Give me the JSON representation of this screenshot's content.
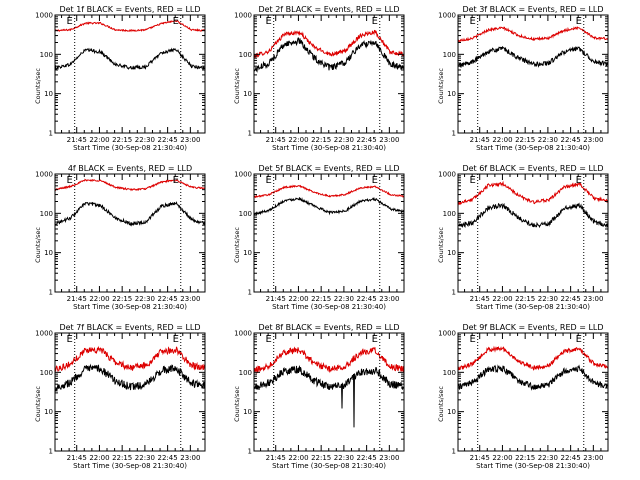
{
  "figure": {
    "x_axis_label": "Start Time (30-Sep-08 21:30:40)",
    "y_axis_label": "Counts/sec",
    "x_tick_labels": [
      "21:45",
      "22:00",
      "22:15",
      "22:30",
      "22:45",
      "23:00"
    ],
    "y_tick_labels": [
      "1",
      "10",
      "100",
      "1000"
    ],
    "event_marker_labels": [
      "E",
      "E"
    ],
    "series_colors": {
      "events": "#000000",
      "lld": "#dd0000"
    }
  },
  "chart_data": [
    {
      "type": "line",
      "title": "Det 1f BLACK = Events, RED = LLD",
      "x_unit": "minutes after 21:30:40",
      "xlim": [
        0,
        99
      ],
      "ylim": [
        1,
        1000
      ],
      "y_scale": "log",
      "grid": false,
      "event_markers_x": [
        13,
        83
      ],
      "series": [
        {
          "color": "#dd0000",
          "x": [
            0,
            10,
            20,
            30,
            40,
            50,
            60,
            70,
            80,
            90,
            99
          ],
          "values": [
            400,
            420,
            620,
            620,
            420,
            400,
            420,
            600,
            720,
            420,
            400
          ],
          "noise": 0.02
        },
        {
          "color": "#000000",
          "x": [
            0,
            10,
            20,
            30,
            40,
            50,
            60,
            70,
            80,
            90,
            99
          ],
          "values": [
            45,
            55,
            130,
            115,
            55,
            45,
            48,
            110,
            130,
            50,
            45
          ],
          "noise": 0.04
        }
      ]
    },
    {
      "type": "line",
      "title": "Det 2f BLACK = Events, RED = LLD",
      "x_unit": "minutes after 21:30:40",
      "xlim": [
        0,
        99
      ],
      "ylim": [
        1,
        1000
      ],
      "y_scale": "log",
      "grid": false,
      "event_markers_x": [
        13,
        83
      ],
      "series": [
        {
          "color": "#dd0000",
          "x": [
            0,
            10,
            20,
            30,
            40,
            50,
            60,
            70,
            80,
            90,
            99
          ],
          "values": [
            90,
            120,
            330,
            360,
            150,
            100,
            120,
            300,
            380,
            110,
            100
          ],
          "noise": 0.05
        },
        {
          "color": "#000000",
          "x": [
            0,
            10,
            20,
            30,
            40,
            50,
            60,
            70,
            80,
            90,
            99
          ],
          "values": [
            40,
            60,
            180,
            220,
            80,
            45,
            60,
            170,
            210,
            55,
            45
          ],
          "noise": 0.08
        }
      ]
    },
    {
      "type": "line",
      "title": "Det 3f BLACK = Events, RED = LLD",
      "x_unit": "minutes after 21:30:40",
      "xlim": [
        0,
        99
      ],
      "ylim": [
        1,
        1000
      ],
      "y_scale": "log",
      "grid": false,
      "event_markers_x": [
        13,
        83
      ],
      "series": [
        {
          "color": "#dd0000",
          "x": [
            0,
            10,
            20,
            30,
            40,
            50,
            60,
            70,
            80,
            90,
            99
          ],
          "values": [
            220,
            260,
            420,
            470,
            300,
            240,
            260,
            400,
            480,
            260,
            250
          ],
          "noise": 0.03
        },
        {
          "color": "#000000",
          "x": [
            0,
            10,
            20,
            30,
            40,
            50,
            60,
            70,
            80,
            90,
            99
          ],
          "values": [
            50,
            65,
            120,
            140,
            80,
            55,
            60,
            115,
            140,
            65,
            55
          ],
          "noise": 0.06
        }
      ]
    },
    {
      "type": "line",
      "title": "4f BLACK = Events, RED = LLD",
      "x_unit": "minutes after 21:30:40",
      "xlim": [
        0,
        99
      ],
      "ylim": [
        1,
        1000
      ],
      "y_scale": "log",
      "grid": false,
      "event_markers_x": [
        13,
        83
      ],
      "series": [
        {
          "color": "#dd0000",
          "x": [
            0,
            10,
            20,
            30,
            40,
            50,
            60,
            70,
            80,
            90,
            99
          ],
          "values": [
            400,
            480,
            700,
            680,
            460,
            400,
            420,
            620,
            700,
            460,
            430
          ],
          "noise": 0.02
        },
        {
          "color": "#000000",
          "x": [
            0,
            10,
            20,
            30,
            40,
            50,
            60,
            70,
            80,
            90,
            99
          ],
          "values": [
            55,
            75,
            180,
            160,
            75,
            55,
            60,
            150,
            180,
            70,
            55
          ],
          "noise": 0.04
        }
      ]
    },
    {
      "type": "line",
      "title": "Det 5f BLACK = Events, RED = LLD",
      "x_unit": "minutes after 21:30:40",
      "xlim": [
        0,
        99
      ],
      "ylim": [
        1,
        1000
      ],
      "y_scale": "log",
      "grid": false,
      "event_markers_x": [
        13,
        83
      ],
      "series": [
        {
          "color": "#dd0000",
          "x": [
            0,
            10,
            20,
            30,
            40,
            50,
            60,
            70,
            80,
            90,
            99
          ],
          "values": [
            260,
            300,
            460,
            500,
            340,
            270,
            300,
            440,
            480,
            300,
            270
          ],
          "noise": 0.02
        },
        {
          "color": "#000000",
          "x": [
            0,
            10,
            20,
            30,
            40,
            50,
            60,
            70,
            80,
            90,
            99
          ],
          "values": [
            95,
            120,
            210,
            240,
            150,
            105,
            115,
            200,
            230,
            130,
            110
          ],
          "noise": 0.03
        }
      ]
    },
    {
      "type": "line",
      "title": "Det 6f BLACK = Events, RED = LLD",
      "x_unit": "minutes after 21:30:40",
      "xlim": [
        0,
        99
      ],
      "ylim": [
        1,
        1000
      ],
      "y_scale": "log",
      "grid": false,
      "event_markers_x": [
        13,
        83
      ],
      "series": [
        {
          "color": "#dd0000",
          "x": [
            0,
            10,
            20,
            30,
            40,
            50,
            60,
            70,
            80,
            90,
            99
          ],
          "values": [
            180,
            230,
            520,
            560,
            280,
            190,
            220,
            460,
            560,
            240,
            200
          ],
          "noise": 0.04
        },
        {
          "color": "#000000",
          "x": [
            0,
            10,
            20,
            30,
            40,
            50,
            60,
            70,
            80,
            90,
            99
          ],
          "values": [
            45,
            60,
            140,
            160,
            75,
            50,
            55,
            130,
            160,
            60,
            50
          ],
          "noise": 0.06
        }
      ]
    },
    {
      "type": "line",
      "title": "Det 7f BLACK = Events, RED = LLD",
      "x_unit": "minutes after 21:30:40",
      "xlim": [
        0,
        99
      ],
      "ylim": [
        1,
        1000
      ],
      "y_scale": "log",
      "grid": false,
      "event_markers_x": [
        13,
        83
      ],
      "series": [
        {
          "color": "#dd0000",
          "x": [
            0,
            10,
            20,
            30,
            40,
            50,
            60,
            70,
            80,
            90,
            99
          ],
          "values": [
            120,
            160,
            370,
            380,
            180,
            130,
            150,
            330,
            380,
            150,
            130
          ],
          "noise": 0.08
        },
        {
          "color": "#000000",
          "x": [
            0,
            10,
            20,
            30,
            40,
            50,
            60,
            70,
            80,
            90,
            99
          ],
          "values": [
            40,
            55,
            120,
            125,
            60,
            42,
            48,
            110,
            125,
            52,
            45
          ],
          "noise": 0.1
        }
      ]
    },
    {
      "type": "line",
      "title": "Det 8f BLACK = Events, RED = LLD",
      "x_unit": "minutes after 21:30:40",
      "xlim": [
        0,
        99
      ],
      "ylim": [
        1,
        1000
      ],
      "y_scale": "log",
      "grid": false,
      "event_markers_x": [
        13,
        83
      ],
      "series": [
        {
          "color": "#dd0000",
          "x": [
            0,
            10,
            20,
            30,
            40,
            50,
            60,
            70,
            80,
            90,
            99
          ],
          "values": [
            110,
            150,
            340,
            360,
            170,
            120,
            140,
            310,
            360,
            140,
            120
          ],
          "noise": 0.08
        },
        {
          "color": "#000000",
          "x": [
            0,
            10,
            20,
            30,
            40,
            50,
            60,
            70,
            80,
            90,
            99
          ],
          "values": [
            40,
            55,
            110,
            120,
            60,
            42,
            48,
            100,
            115,
            50,
            45
          ],
          "noise": 0.1,
          "dropouts": [
            {
              "x": 58,
              "value": 12
            },
            {
              "x": 66,
              "value": 4
            }
          ]
        }
      ]
    },
    {
      "type": "line",
      "title": "Det 9f BLACK = Events, RED = LLD",
      "x_unit": "minutes after 21:30:40",
      "xlim": [
        0,
        99
      ],
      "ylim": [
        1,
        1000
      ],
      "y_scale": "log",
      "grid": false,
      "event_markers_x": [
        13,
        83
      ],
      "series": [
        {
          "color": "#dd0000",
          "x": [
            0,
            10,
            20,
            30,
            40,
            50,
            60,
            70,
            80,
            90,
            99
          ],
          "values": [
            120,
            170,
            380,
            400,
            190,
            130,
            150,
            340,
            400,
            160,
            140
          ],
          "noise": 0.05
        },
        {
          "color": "#000000",
          "x": [
            0,
            10,
            20,
            30,
            40,
            50,
            60,
            70,
            80,
            90,
            99
          ],
          "values": [
            42,
            55,
            120,
            125,
            60,
            42,
            48,
            110,
            125,
            52,
            45
          ],
          "noise": 0.08
        }
      ]
    }
  ]
}
